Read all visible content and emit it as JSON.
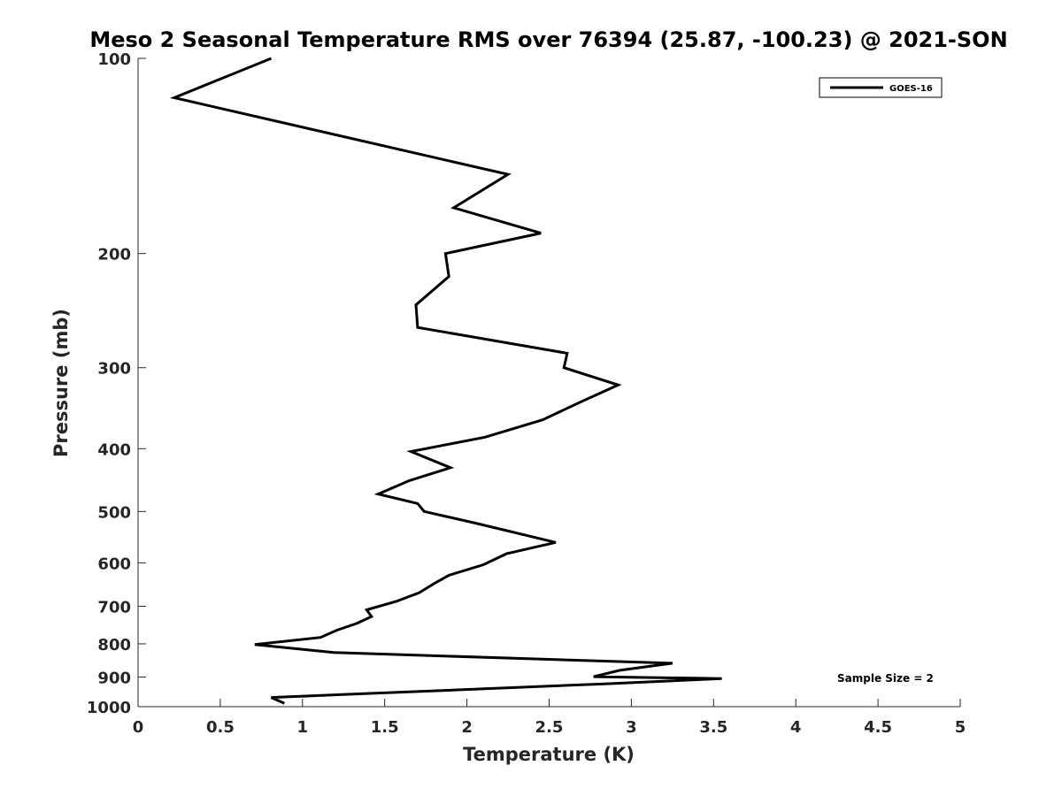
{
  "chart_data": {
    "type": "line",
    "title": "Meso 2 Seasonal Temperature RMS over 76394 (25.87, -100.23) @ 2021-SON",
    "xlabel": "Temperature (K)",
    "ylabel": "Pressure (mb)",
    "xlim": [
      0,
      5
    ],
    "ylim": [
      1000,
      100
    ],
    "y_scale": "log",
    "x_ticks": [
      0,
      0.5,
      1,
      1.5,
      2,
      2.5,
      3,
      3.5,
      4,
      4.5,
      5
    ],
    "x_tick_labels": [
      "0",
      "0.5",
      "1",
      "1.5",
      "2",
      "2.5",
      "3",
      "3.5",
      "4",
      "4.5",
      "5"
    ],
    "y_ticks": [
      100,
      200,
      300,
      400,
      500,
      600,
      700,
      800,
      900,
      1000
    ],
    "y_tick_labels": [
      "100",
      "200",
      "300",
      "400",
      "500",
      "600",
      "700",
      "800",
      "900",
      "1000"
    ],
    "grid": false,
    "legend_position": "top-right",
    "series": [
      {
        "name": "GOES-16",
        "color": "#000000",
        "x": [
          0.81,
          0.22,
          2.25,
          1.92,
          2.45,
          1.87,
          1.89,
          1.69,
          1.7,
          2.61,
          2.59,
          2.92,
          2.7,
          2.46,
          2.11,
          1.66,
          1.9,
          1.65,
          1.46,
          1.7,
          1.74,
          2.05,
          2.54,
          2.24,
          2.1,
          1.89,
          1.8,
          1.71,
          1.57,
          1.39,
          1.42,
          1.33,
          1.21,
          1.11,
          0.71,
          1.19,
          3.25,
          2.93,
          2.77,
          3.55,
          2.85,
          0.81,
          0.89
        ],
        "y": [
          100,
          115,
          151,
          170,
          186,
          200,
          217,
          240,
          260,
          285,
          300,
          319,
          338,
          361,
          384,
          404,
          428,
          448,
          470,
          486,
          500,
          521,
          558,
          581,
          604,
          627,
          646,
          667,
          688,
          709,
          726,
          744,
          762,
          782,
          802,
          825,
          857,
          879,
          899,
          905,
          922,
          968,
          988
        ]
      }
    ],
    "annotations": [
      "Sample Size = 2"
    ]
  }
}
